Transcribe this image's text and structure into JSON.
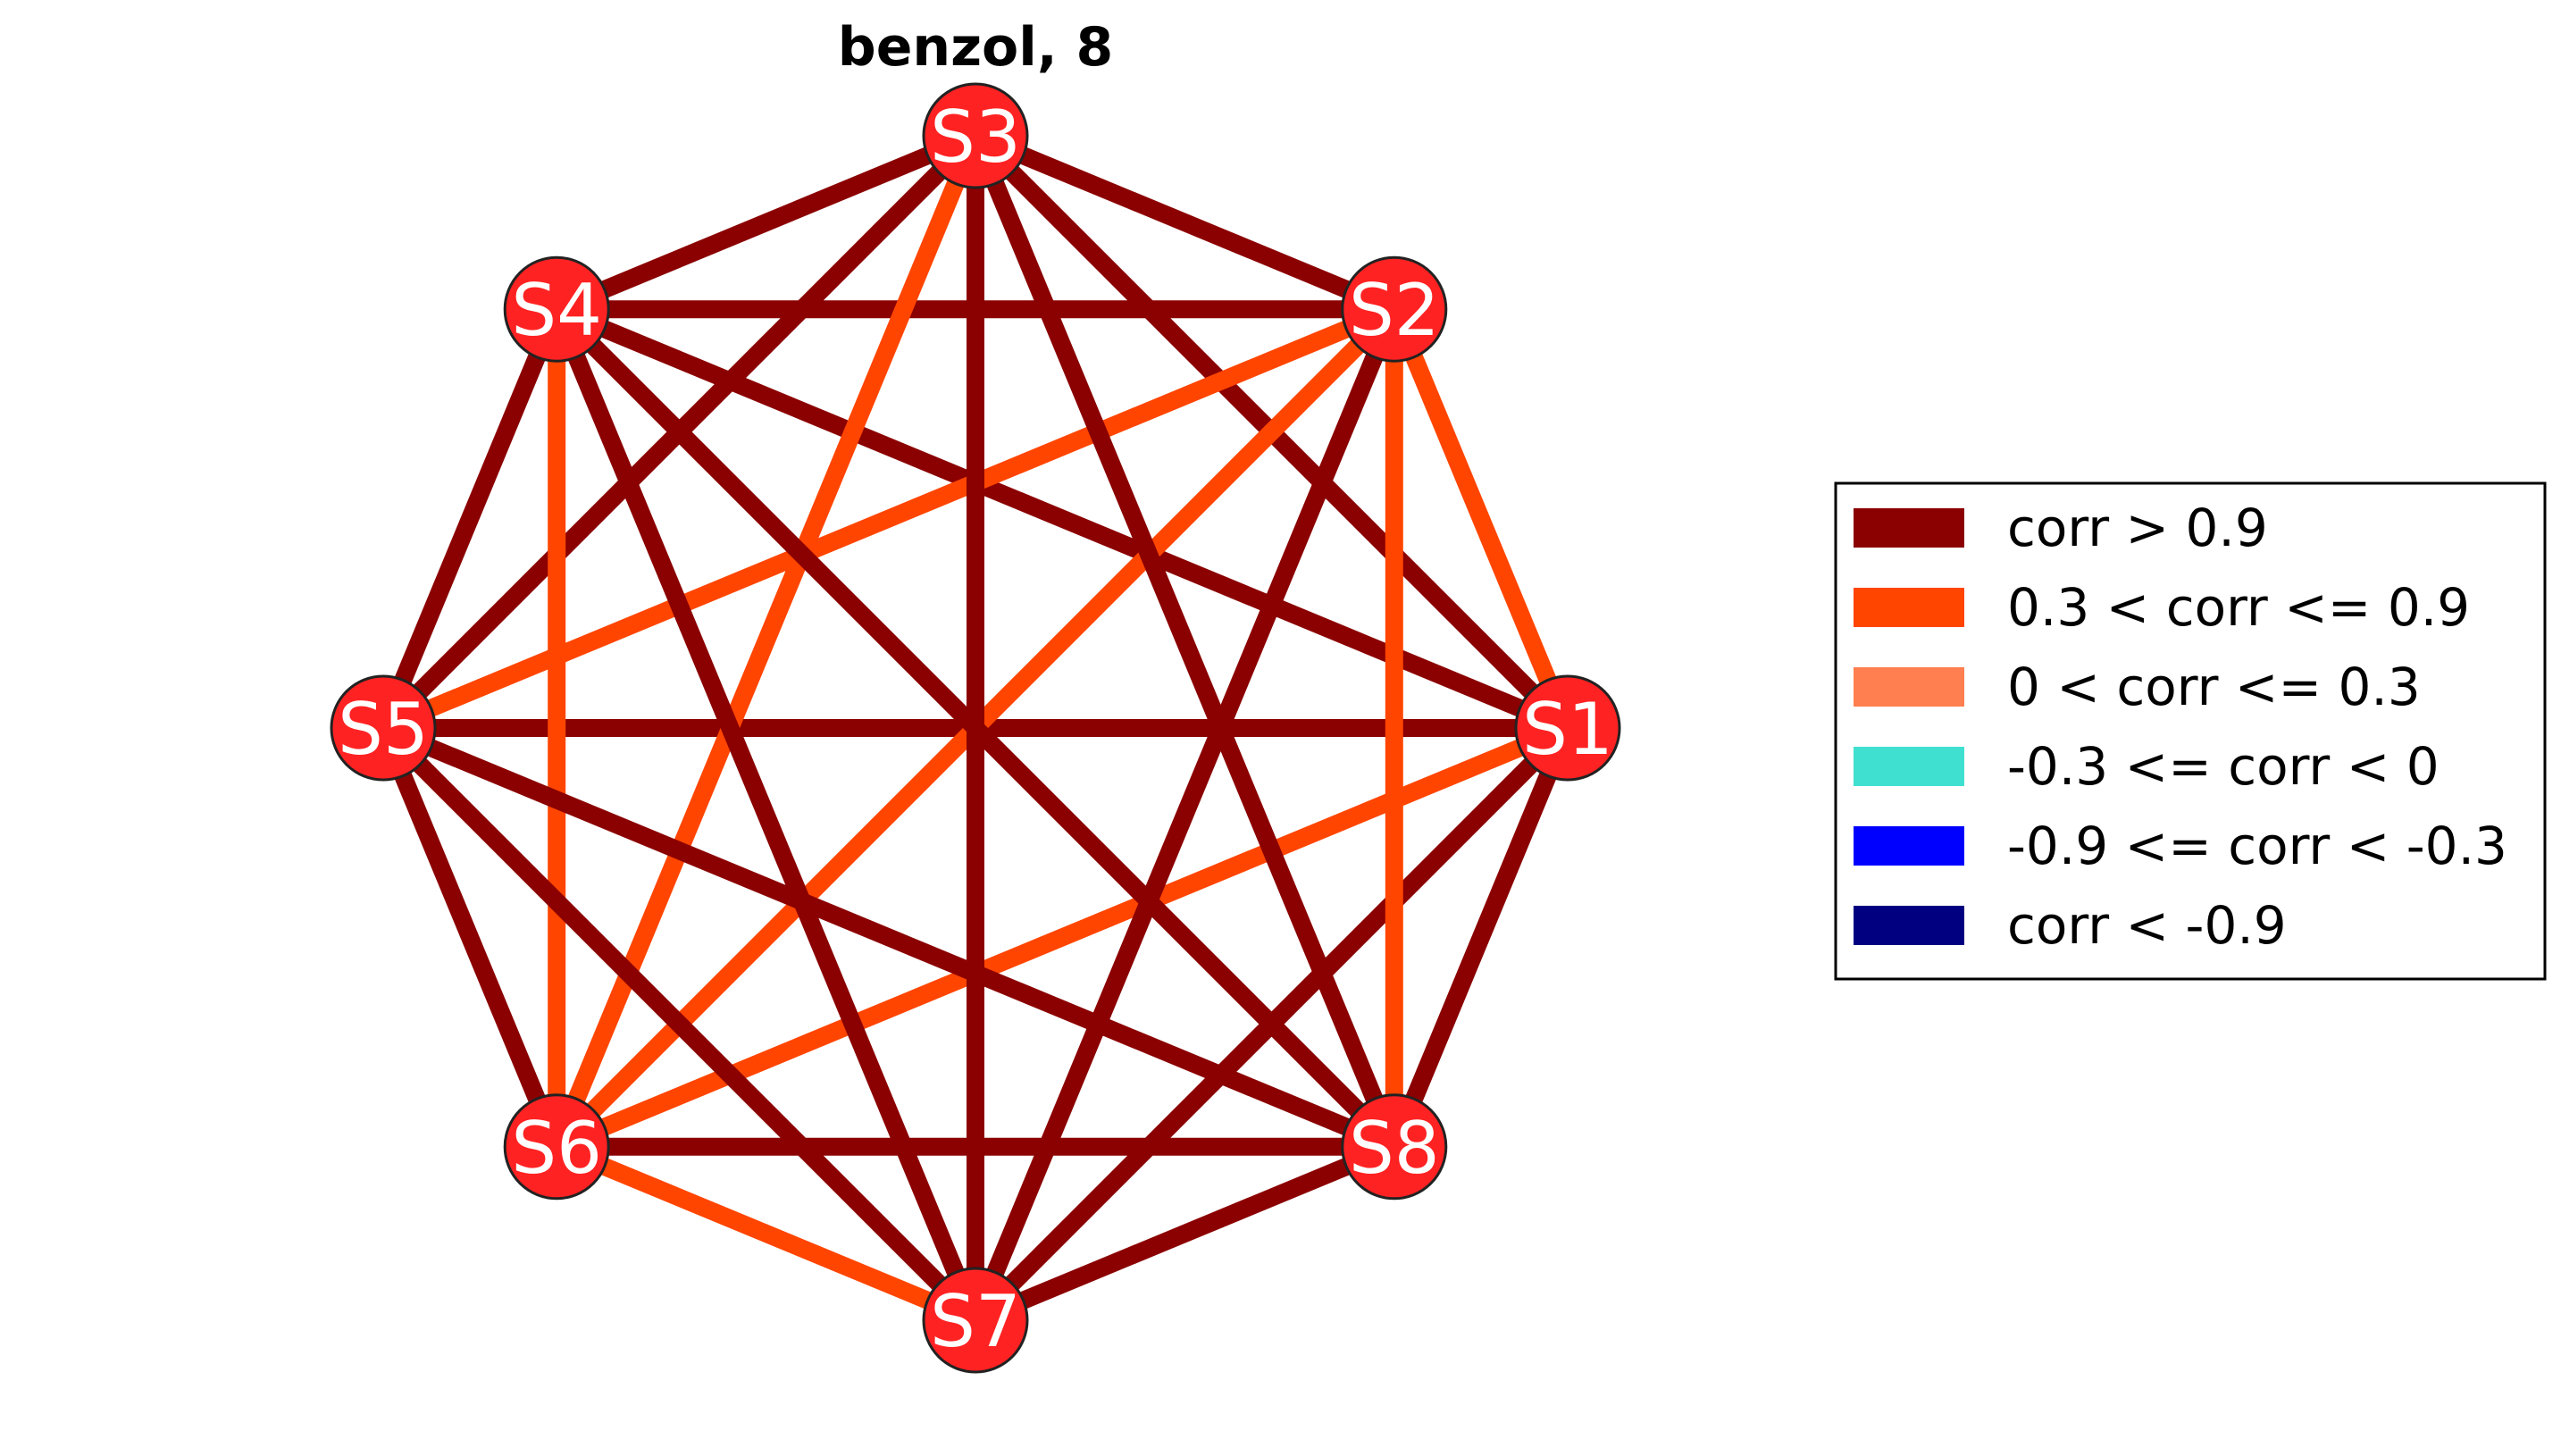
{
  "title": "benzol, 8",
  "nodes": [
    {
      "id": "S1",
      "label": "S1"
    },
    {
      "id": "S2",
      "label": "S2"
    },
    {
      "id": "S3",
      "label": "S3"
    },
    {
      "id": "S4",
      "label": "S4"
    },
    {
      "id": "S5",
      "label": "S5"
    },
    {
      "id": "S6",
      "label": "S6"
    },
    {
      "id": "S7",
      "label": "S7"
    },
    {
      "id": "S8",
      "label": "S8"
    }
  ],
  "edges": [
    {
      "source": "S1",
      "target": "S2",
      "class": "0.3 < corr <= 0.9"
    },
    {
      "source": "S1",
      "target": "S3",
      "class": "corr > 0.9"
    },
    {
      "source": "S1",
      "target": "S4",
      "class": "corr > 0.9"
    },
    {
      "source": "S1",
      "target": "S5",
      "class": "corr > 0.9"
    },
    {
      "source": "S1",
      "target": "S6",
      "class": "0.3 < corr <= 0.9"
    },
    {
      "source": "S1",
      "target": "S7",
      "class": "corr > 0.9"
    },
    {
      "source": "S1",
      "target": "S8",
      "class": "corr > 0.9"
    },
    {
      "source": "S2",
      "target": "S3",
      "class": "corr > 0.9"
    },
    {
      "source": "S2",
      "target": "S4",
      "class": "corr > 0.9"
    },
    {
      "source": "S2",
      "target": "S5",
      "class": "0.3 < corr <= 0.9"
    },
    {
      "source": "S2",
      "target": "S6",
      "class": "0.3 < corr <= 0.9"
    },
    {
      "source": "S2",
      "target": "S7",
      "class": "corr > 0.9"
    },
    {
      "source": "S2",
      "target": "S8",
      "class": "0.3 < corr <= 0.9"
    },
    {
      "source": "S3",
      "target": "S4",
      "class": "corr > 0.9"
    },
    {
      "source": "S3",
      "target": "S5",
      "class": "corr > 0.9"
    },
    {
      "source": "S3",
      "target": "S6",
      "class": "0.3 < corr <= 0.9"
    },
    {
      "source": "S3",
      "target": "S7",
      "class": "corr > 0.9"
    },
    {
      "source": "S3",
      "target": "S8",
      "class": "corr > 0.9"
    },
    {
      "source": "S4",
      "target": "S5",
      "class": "corr > 0.9"
    },
    {
      "source": "S4",
      "target": "S6",
      "class": "0.3 < corr <= 0.9"
    },
    {
      "source": "S4",
      "target": "S7",
      "class": "corr > 0.9"
    },
    {
      "source": "S4",
      "target": "S8",
      "class": "corr > 0.9"
    },
    {
      "source": "S5",
      "target": "S6",
      "class": "corr > 0.9"
    },
    {
      "source": "S5",
      "target": "S7",
      "class": "corr > 0.9"
    },
    {
      "source": "S5",
      "target": "S8",
      "class": "corr > 0.9"
    },
    {
      "source": "S6",
      "target": "S7",
      "class": "0.3 < corr <= 0.9"
    },
    {
      "source": "S6",
      "target": "S8",
      "class": "corr > 0.9"
    },
    {
      "source": "S7",
      "target": "S8",
      "class": "corr > 0.9"
    }
  ],
  "legend": {
    "items": [
      {
        "label": "corr > 0.9",
        "color": "#8b0000"
      },
      {
        "label": "0.3 < corr <= 0.9",
        "color": "#ff4500"
      },
      {
        "label": "0 < corr <= 0.3",
        "color": "#ff7f50"
      },
      {
        "label": "-0.3 <= corr < 0",
        "color": "#40e0d0"
      },
      {
        "label": "-0.9 <= corr < -0.3",
        "color": "#0000ff"
      },
      {
        "label": "corr < -0.9",
        "color": "#000080"
      }
    ]
  },
  "colors": {
    "node_fill": "#ff2222",
    "node_stroke": "#222222",
    "node_label": "#ffffff"
  }
}
